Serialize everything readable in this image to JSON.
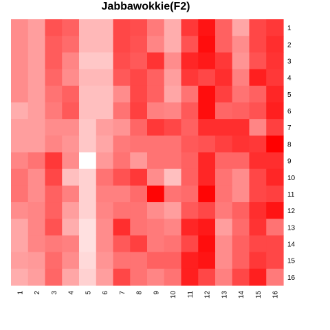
{
  "chart_data": {
    "type": "heatmap",
    "title": "Jabbawokkie(F2)",
    "xlabel": "",
    "ylabel": "",
    "x_labels": [
      "1",
      "2",
      "3",
      "4",
      "5",
      "6",
      "7",
      "8",
      "9",
      "10",
      "11",
      "12",
      "13",
      "14",
      "15",
      "16"
    ],
    "y_labels": [
      "1",
      "2",
      "3",
      "4",
      "5",
      "6",
      "7",
      "8",
      "9",
      "10",
      "11",
      "12",
      "13",
      "14",
      "15",
      "16"
    ],
    "color_scale": {
      "low": "#ffffff",
      "high": "#ff0000"
    },
    "value_range": [
      0,
      1
    ],
    "grid": false,
    "legend": "none",
    "values": [
      [
        0.45,
        0.38,
        0.68,
        0.62,
        0.28,
        0.28,
        0.72,
        0.7,
        0.52,
        0.32,
        0.78,
        0.92,
        0.62,
        0.35,
        0.72,
        0.78
      ],
      [
        0.45,
        0.38,
        0.64,
        0.58,
        0.28,
        0.28,
        0.72,
        0.68,
        0.48,
        0.32,
        0.68,
        0.95,
        0.62,
        0.45,
        0.72,
        0.82
      ],
      [
        0.45,
        0.38,
        0.64,
        0.48,
        0.22,
        0.22,
        0.7,
        0.65,
        0.8,
        0.45,
        0.85,
        0.9,
        0.78,
        0.42,
        0.68,
        0.8
      ],
      [
        0.45,
        0.38,
        0.6,
        0.45,
        0.28,
        0.28,
        0.65,
        0.72,
        0.62,
        0.38,
        0.78,
        0.72,
        0.82,
        0.5,
        0.88,
        0.78
      ],
      [
        0.45,
        0.38,
        0.55,
        0.62,
        0.25,
        0.25,
        0.45,
        0.72,
        0.62,
        0.35,
        0.55,
        0.95,
        0.75,
        0.55,
        0.62,
        0.85
      ],
      [
        0.32,
        0.38,
        0.52,
        0.65,
        0.25,
        0.25,
        0.55,
        0.75,
        0.5,
        0.48,
        0.65,
        0.95,
        0.6,
        0.62,
        0.68,
        0.88
      ],
      [
        0.38,
        0.38,
        0.45,
        0.45,
        0.22,
        0.38,
        0.42,
        0.6,
        0.78,
        0.72,
        0.62,
        0.82,
        0.82,
        0.82,
        0.48,
        0.75
      ],
      [
        0.38,
        0.38,
        0.48,
        0.42,
        0.22,
        0.35,
        0.52,
        0.55,
        0.55,
        0.55,
        0.65,
        0.68,
        0.75,
        0.8,
        0.78,
        1.0
      ],
      [
        0.48,
        0.55,
        0.78,
        0.45,
        0.0,
        0.4,
        0.55,
        0.4,
        0.55,
        0.55,
        0.62,
        0.85,
        0.6,
        0.6,
        0.82,
        0.82
      ],
      [
        0.55,
        0.45,
        0.72,
        0.25,
        0.18,
        0.55,
        0.68,
        0.78,
        0.45,
        0.25,
        0.62,
        0.85,
        0.55,
        0.45,
        0.72,
        0.85
      ],
      [
        0.55,
        0.45,
        0.62,
        0.5,
        0.18,
        0.5,
        0.5,
        0.58,
        0.98,
        0.55,
        0.58,
        0.98,
        0.55,
        0.45,
        0.72,
        0.75
      ],
      [
        0.45,
        0.48,
        0.62,
        0.38,
        0.18,
        0.48,
        0.55,
        0.55,
        0.45,
        0.38,
        0.65,
        0.72,
        0.52,
        0.62,
        0.82,
        0.92
      ],
      [
        0.35,
        0.48,
        0.68,
        0.32,
        0.12,
        0.45,
        0.82,
        0.55,
        0.52,
        0.48,
        0.85,
        0.9,
        0.38,
        0.58,
        0.8,
        0.55
      ],
      [
        0.35,
        0.48,
        0.52,
        0.5,
        0.12,
        0.45,
        0.65,
        0.75,
        0.52,
        0.55,
        0.72,
        0.95,
        0.45,
        0.62,
        0.72,
        0.72
      ],
      [
        0.38,
        0.4,
        0.58,
        0.45,
        0.15,
        0.42,
        0.55,
        0.55,
        0.62,
        0.62,
        0.88,
        0.92,
        0.45,
        0.62,
        0.78,
        0.72
      ],
      [
        0.32,
        0.38,
        0.6,
        0.35,
        0.18,
        0.38,
        0.72,
        0.55,
        0.48,
        0.55,
        0.88,
        0.72,
        0.5,
        0.72,
        0.88,
        0.52
      ]
    ]
  }
}
